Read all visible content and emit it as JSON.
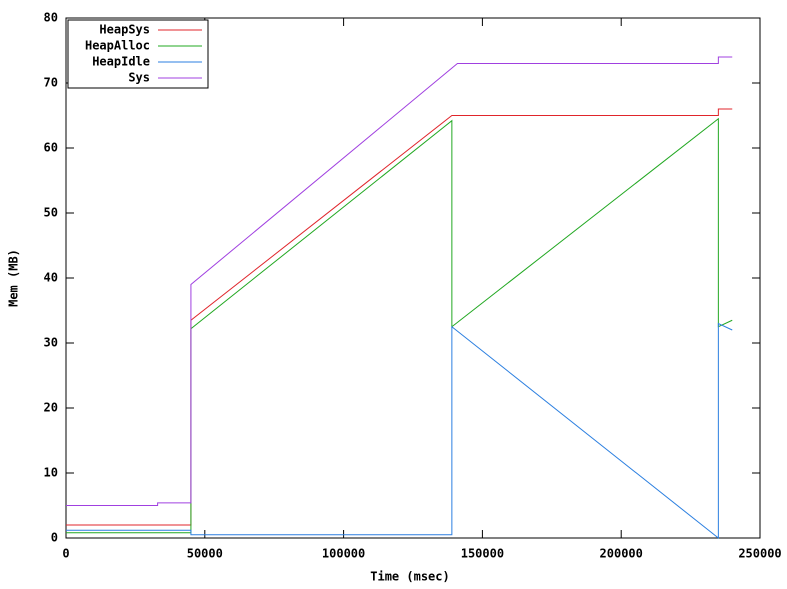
{
  "chart_data": {
    "type": "line",
    "xlabel": "Time (msec)",
    "ylabel": "Mem (MB)",
    "xlim": [
      0,
      250000
    ],
    "xticks": [
      0,
      50000,
      100000,
      150000,
      200000,
      250000
    ],
    "ylim": [
      0,
      80
    ],
    "yticks": [
      0,
      10,
      20,
      30,
      40,
      50,
      60,
      70,
      80
    ],
    "legend": "top-left",
    "series": [
      {
        "name": "HeapSys",
        "color": "#e0252b",
        "x": [
          0,
          45000,
          45000,
          139000,
          235000,
          235000,
          240000
        ],
        "values": [
          2,
          2,
          33.5,
          65,
          65,
          66,
          66
        ]
      },
      {
        "name": "HeapAlloc",
        "color": "#22a822",
        "x": [
          0,
          45000,
          45000,
          139000,
          139000,
          235000,
          235000,
          240000
        ],
        "values": [
          0.8,
          0.8,
          32.2,
          64.2,
          32.5,
          64.5,
          32.5,
          33.5
        ]
      },
      {
        "name": "HeapIdle",
        "color": "#2b7fe0",
        "x": [
          0,
          45000,
          45000,
          139000,
          139000,
          235000,
          235000,
          240000
        ],
        "values": [
          1.2,
          1.2,
          0.5,
          0.5,
          32.5,
          0,
          33,
          32
        ]
      },
      {
        "name": "Sys",
        "color": "#a040e0",
        "x": [
          0,
          33000,
          33000,
          45000,
          45000,
          141000,
          235000,
          235000,
          240000
        ],
        "values": [
          5,
          5,
          5.4,
          5.4,
          39,
          73,
          73,
          74,
          74
        ]
      }
    ]
  }
}
